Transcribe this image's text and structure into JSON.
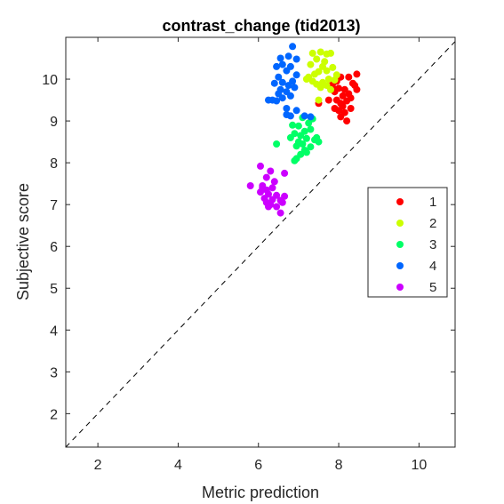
{
  "chart_data": {
    "type": "scatter",
    "title": "contrast_change (tid2013)",
    "xlabel": "Metric prediction",
    "ylabel": "Subjective score",
    "xlim": [
      1.2,
      10.9
    ],
    "ylim": [
      1.2,
      11.0
    ],
    "xticks": [
      "2",
      "4",
      "6",
      "8",
      "10"
    ],
    "yticks": [
      "2",
      "3",
      "4",
      "5",
      "6",
      "7",
      "8",
      "9",
      "10"
    ],
    "grid": false,
    "legend_position": "right",
    "reference_line": {
      "style": "dashed",
      "from": [
        1.2,
        1.2
      ],
      "to": [
        10.9,
        10.9
      ]
    },
    "series": [
      {
        "name": "1",
        "color": "#ff0000",
        "points": [
          [
            8.45,
            10.12
          ],
          [
            8.25,
            10.05
          ],
          [
            8.05,
            10.05
          ],
          [
            7.95,
            9.95
          ],
          [
            8.35,
            9.9
          ],
          [
            7.85,
            9.8
          ],
          [
            8.0,
            9.78
          ],
          [
            8.15,
            9.75
          ],
          [
            7.9,
            9.7
          ],
          [
            8.4,
            9.85
          ],
          [
            8.1,
            9.6
          ],
          [
            8.3,
            9.55
          ],
          [
            7.95,
            9.5
          ],
          [
            8.2,
            9.48
          ],
          [
            8.05,
            9.42
          ],
          [
            8.3,
            9.3
          ],
          [
            8.0,
            9.25
          ],
          [
            7.9,
            9.3
          ],
          [
            8.15,
            9.2
          ],
          [
            8.05,
            9.1
          ],
          [
            7.5,
            9.42
          ],
          [
            7.75,
            9.5
          ],
          [
            8.45,
            9.75
          ],
          [
            8.1,
            9.35
          ],
          [
            7.85,
            9.9
          ],
          [
            8.2,
            9.0
          ],
          [
            8.25,
            9.65
          ]
        ]
      },
      {
        "name": "2",
        "color": "#ccff00",
        "points": [
          [
            7.55,
            10.65
          ],
          [
            7.8,
            10.62
          ],
          [
            7.7,
            10.6
          ],
          [
            7.35,
            10.62
          ],
          [
            7.45,
            10.48
          ],
          [
            7.3,
            10.35
          ],
          [
            7.6,
            10.3
          ],
          [
            7.85,
            10.28
          ],
          [
            7.7,
            10.2
          ],
          [
            7.5,
            10.18
          ],
          [
            7.4,
            10.12
          ],
          [
            7.25,
            10.05
          ],
          [
            7.75,
            10.0
          ],
          [
            7.9,
            9.98
          ],
          [
            7.6,
            9.92
          ],
          [
            7.45,
            9.88
          ],
          [
            7.55,
            9.8
          ],
          [
            7.8,
            9.75
          ],
          [
            7.5,
            9.5
          ],
          [
            7.65,
            10.42
          ],
          [
            7.2,
            10.0
          ],
          [
            7.35,
            9.95
          ],
          [
            7.95,
            10.1
          ],
          [
            7.7,
            9.85
          ]
        ]
      },
      {
        "name": "3",
        "color": "#00ff66",
        "points": [
          [
            7.1,
            9.08
          ],
          [
            7.25,
            8.95
          ],
          [
            6.85,
            8.9
          ],
          [
            7.0,
            8.88
          ],
          [
            7.3,
            8.8
          ],
          [
            7.15,
            8.75
          ],
          [
            6.9,
            8.7
          ],
          [
            7.05,
            8.65
          ],
          [
            6.8,
            8.6
          ],
          [
            7.2,
            8.58
          ],
          [
            7.4,
            8.55
          ],
          [
            7.0,
            8.5
          ],
          [
            7.1,
            8.45
          ],
          [
            6.95,
            8.4
          ],
          [
            7.3,
            8.38
          ],
          [
            7.5,
            8.5
          ],
          [
            7.15,
            8.3
          ],
          [
            7.05,
            8.2
          ],
          [
            6.95,
            8.1
          ],
          [
            6.9,
            8.05
          ],
          [
            6.45,
            8.45
          ],
          [
            7.35,
            9.05
          ],
          [
            7.2,
            8.25
          ],
          [
            7.45,
            8.6
          ]
        ]
      },
      {
        "name": "4",
        "color": "#0066ff",
        "points": [
          [
            6.85,
            10.78
          ],
          [
            6.55,
            10.5
          ],
          [
            6.75,
            10.55
          ],
          [
            6.95,
            10.48
          ],
          [
            6.6,
            10.35
          ],
          [
            6.8,
            10.3
          ],
          [
            6.45,
            10.3
          ],
          [
            6.7,
            10.2
          ],
          [
            6.95,
            10.1
          ],
          [
            6.5,
            10.05
          ],
          [
            6.85,
            9.95
          ],
          [
            6.6,
            9.92
          ],
          [
            6.75,
            9.85
          ],
          [
            6.4,
            9.9
          ],
          [
            6.9,
            9.8
          ],
          [
            6.55,
            9.75
          ],
          [
            6.7,
            9.7
          ],
          [
            6.5,
            9.65
          ],
          [
            6.8,
            9.6
          ],
          [
            6.6,
            9.55
          ],
          [
            6.35,
            9.5
          ],
          [
            6.45,
            9.48
          ],
          [
            6.25,
            9.5
          ],
          [
            6.7,
            9.3
          ],
          [
            6.95,
            9.25
          ],
          [
            6.8,
            9.12
          ],
          [
            7.15,
            9.12
          ],
          [
            6.7,
            9.15
          ],
          [
            7.3,
            9.1
          ]
        ]
      },
      {
        "name": "5",
        "color": "#cc00ff",
        "points": [
          [
            6.05,
            7.92
          ],
          [
            6.3,
            7.8
          ],
          [
            6.65,
            7.75
          ],
          [
            6.2,
            7.65
          ],
          [
            6.4,
            7.55
          ],
          [
            5.8,
            7.45
          ],
          [
            6.1,
            7.45
          ],
          [
            6.35,
            7.4
          ],
          [
            6.2,
            7.35
          ],
          [
            6.05,
            7.3
          ],
          [
            6.25,
            7.25
          ],
          [
            6.45,
            7.22
          ],
          [
            6.65,
            7.2
          ],
          [
            6.15,
            7.15
          ],
          [
            6.35,
            7.12
          ],
          [
            6.55,
            7.1
          ],
          [
            6.2,
            7.05
          ],
          [
            6.3,
            7.0
          ],
          [
            6.45,
            6.95
          ],
          [
            6.25,
            6.95
          ],
          [
            6.55,
            6.8
          ],
          [
            6.1,
            7.4
          ],
          [
            6.6,
            7.05
          ]
        ]
      }
    ]
  }
}
